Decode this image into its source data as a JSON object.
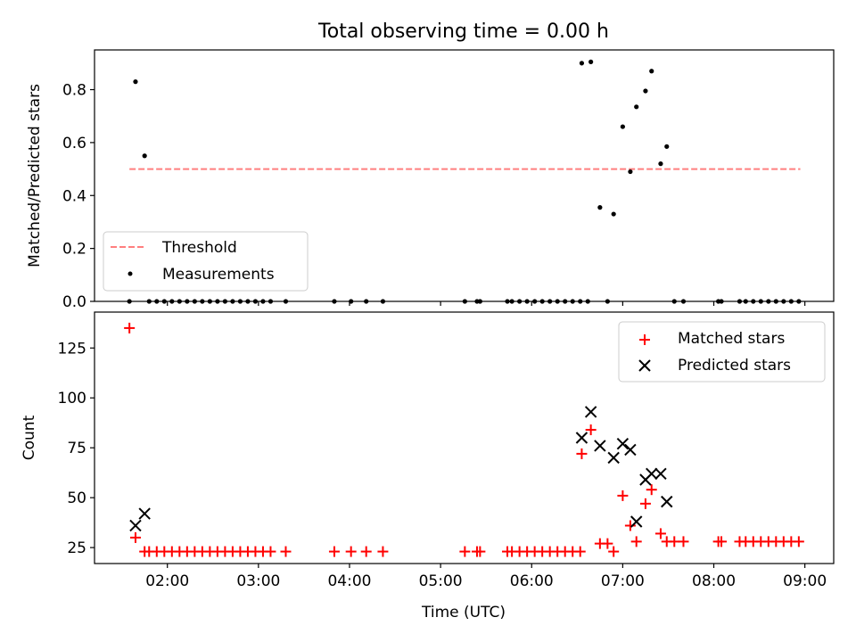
{
  "figure": {
    "title": "Total observing time = 0.00 h"
  },
  "colors": {
    "matched": "#ff0000",
    "predicted": "#000000",
    "threshold": "#ff7f7f",
    "measurements": "#000000"
  },
  "chart_data": [
    {
      "type": "scatter",
      "panel": "top",
      "title": "Total observing time = 0.00 h",
      "xlabel": "",
      "ylabel": "Matched/Predicted stars",
      "xlim": [
        "01:12",
        "09:19"
      ],
      "ylim": [
        0,
        0.95
      ],
      "yticks": [
        0.0,
        0.2,
        0.4,
        0.6,
        0.8
      ],
      "ytick_labels": [
        "0.0",
        "0.2",
        "0.4",
        "0.6",
        "0.8"
      ],
      "grid": false,
      "legend": {
        "placement": "lower-left",
        "entries": [
          "Threshold",
          "Measurements"
        ]
      },
      "threshold": {
        "name": "Threshold",
        "y": 0.5,
        "x": [
          "01:35",
          "08:57"
        ],
        "style": "dashed"
      },
      "series": [
        {
          "name": "Measurements",
          "marker": "dot",
          "points": [
            [
              "01:35",
              0.0
            ],
            [
              "01:39",
              0.83
            ],
            [
              "01:45",
              0.55
            ],
            [
              "01:48",
              0.0
            ],
            [
              "01:53",
              0.0
            ],
            [
              "01:58",
              0.0
            ],
            [
              "02:03",
              0.0
            ],
            [
              "02:08",
              0.0
            ],
            [
              "02:13",
              0.0
            ],
            [
              "02:18",
              0.0
            ],
            [
              "02:23",
              0.0
            ],
            [
              "02:28",
              0.0
            ],
            [
              "02:33",
              0.0
            ],
            [
              "02:38",
              0.0
            ],
            [
              "02:43",
              0.0
            ],
            [
              "02:48",
              0.0
            ],
            [
              "02:53",
              0.0
            ],
            [
              "02:58",
              0.0
            ],
            [
              "03:03",
              0.0
            ],
            [
              "03:08",
              0.0
            ],
            [
              "03:18",
              0.0
            ],
            [
              "03:50",
              0.0
            ],
            [
              "04:01",
              0.0
            ],
            [
              "04:11",
              0.0
            ],
            [
              "04:22",
              0.0
            ],
            [
              "05:16",
              0.0
            ],
            [
              "05:24",
              0.0
            ],
            [
              "05:26",
              0.0
            ],
            [
              "05:44",
              0.0
            ],
            [
              "05:47",
              0.0
            ],
            [
              "05:52",
              0.0
            ],
            [
              "05:57",
              0.0
            ],
            [
              "06:02",
              0.0
            ],
            [
              "06:07",
              0.0
            ],
            [
              "06:12",
              0.0
            ],
            [
              "06:17",
              0.0
            ],
            [
              "06:22",
              0.0
            ],
            [
              "06:27",
              0.0
            ],
            [
              "06:32",
              0.0
            ],
            [
              "06:37",
              0.0
            ],
            [
              "06:33",
              0.9
            ],
            [
              "06:39",
              0.905
            ],
            [
              "06:45",
              0.355
            ],
            [
              "06:50",
              0.0
            ],
            [
              "06:54",
              0.33
            ],
            [
              "07:00",
              0.66
            ],
            [
              "07:05",
              0.49
            ],
            [
              "07:09",
              0.735
            ],
            [
              "07:15",
              0.795
            ],
            [
              "07:19",
              0.87
            ],
            [
              "07:25",
              0.52
            ],
            [
              "07:29",
              0.585
            ],
            [
              "07:34",
              0.0
            ],
            [
              "07:40",
              0.0
            ],
            [
              "08:03",
              0.0
            ],
            [
              "08:05",
              0.0
            ],
            [
              "08:17",
              0.0
            ],
            [
              "08:21",
              0.0
            ],
            [
              "08:26",
              0.0
            ],
            [
              "08:31",
              0.0
            ],
            [
              "08:36",
              0.0
            ],
            [
              "08:41",
              0.0
            ],
            [
              "08:46",
              0.0
            ],
            [
              "08:51",
              0.0
            ],
            [
              "08:56",
              0.0
            ]
          ]
        }
      ]
    },
    {
      "type": "scatter",
      "panel": "bottom",
      "title": "",
      "xlabel": "Time (UTC)",
      "ylabel": "Count",
      "xlim": [
        "01:12",
        "09:19"
      ],
      "ylim": [
        17,
        143
      ],
      "xticks": [
        "02:00",
        "03:00",
        "04:00",
        "05:00",
        "06:00",
        "07:00",
        "08:00",
        "09:00"
      ],
      "yticks": [
        25,
        50,
        75,
        100,
        125
      ],
      "ytick_labels": [
        "25",
        "50",
        "75",
        "100",
        "125"
      ],
      "grid": false,
      "legend": {
        "placement": "upper-right",
        "entries": [
          "Matched stars",
          "Predicted stars"
        ]
      },
      "series": [
        {
          "name": "Matched stars",
          "marker": "plus",
          "points": [
            [
              "01:35",
              135
            ],
            [
              "01:39",
              30
            ],
            [
              "01:45",
              23
            ],
            [
              "01:48",
              23
            ],
            [
              "01:53",
              23
            ],
            [
              "01:58",
              23
            ],
            [
              "02:03",
              23
            ],
            [
              "02:08",
              23
            ],
            [
              "02:13",
              23
            ],
            [
              "02:18",
              23
            ],
            [
              "02:23",
              23
            ],
            [
              "02:28",
              23
            ],
            [
              "02:33",
              23
            ],
            [
              "02:38",
              23
            ],
            [
              "02:43",
              23
            ],
            [
              "02:48",
              23
            ],
            [
              "02:53",
              23
            ],
            [
              "02:58",
              23
            ],
            [
              "03:03",
              23
            ],
            [
              "03:08",
              23
            ],
            [
              "03:18",
              23
            ],
            [
              "03:50",
              23
            ],
            [
              "04:01",
              23
            ],
            [
              "04:11",
              23
            ],
            [
              "04:22",
              23
            ],
            [
              "05:16",
              23
            ],
            [
              "05:24",
              23
            ],
            [
              "05:26",
              23
            ],
            [
              "05:44",
              23
            ],
            [
              "05:47",
              23
            ],
            [
              "05:52",
              23
            ],
            [
              "05:57",
              23
            ],
            [
              "06:02",
              23
            ],
            [
              "06:07",
              23
            ],
            [
              "06:12",
              23
            ],
            [
              "06:17",
              23
            ],
            [
              "06:22",
              23
            ],
            [
              "06:27",
              23
            ],
            [
              "06:32",
              23
            ],
            [
              "06:33",
              72
            ],
            [
              "06:39",
              84
            ],
            [
              "06:45",
              27
            ],
            [
              "06:50",
              27
            ],
            [
              "06:54",
              23
            ],
            [
              "07:00",
              51
            ],
            [
              "07:05",
              36
            ],
            [
              "07:09",
              28
            ],
            [
              "07:15",
              47
            ],
            [
              "07:19",
              54
            ],
            [
              "07:25",
              32
            ],
            [
              "07:29",
              28
            ],
            [
              "07:34",
              28
            ],
            [
              "07:40",
              28
            ],
            [
              "08:03",
              28
            ],
            [
              "08:05",
              28
            ],
            [
              "08:17",
              28
            ],
            [
              "08:21",
              28
            ],
            [
              "08:26",
              28
            ],
            [
              "08:31",
              28
            ],
            [
              "08:36",
              28
            ],
            [
              "08:41",
              28
            ],
            [
              "08:46",
              28
            ],
            [
              "08:51",
              28
            ],
            [
              "08:56",
              28
            ]
          ]
        },
        {
          "name": "Predicted stars",
          "marker": "x",
          "points": [
            [
              "01:39",
              36
            ],
            [
              "01:45",
              42
            ],
            [
              "06:33",
              80
            ],
            [
              "06:39",
              93
            ],
            [
              "06:45",
              76
            ],
            [
              "06:54",
              70
            ],
            [
              "07:00",
              77
            ],
            [
              "07:05",
              74
            ],
            [
              "07:09",
              38
            ],
            [
              "07:15",
              59
            ],
            [
              "07:19",
              62
            ],
            [
              "07:25",
              62
            ],
            [
              "07:29",
              48
            ]
          ]
        }
      ]
    }
  ]
}
